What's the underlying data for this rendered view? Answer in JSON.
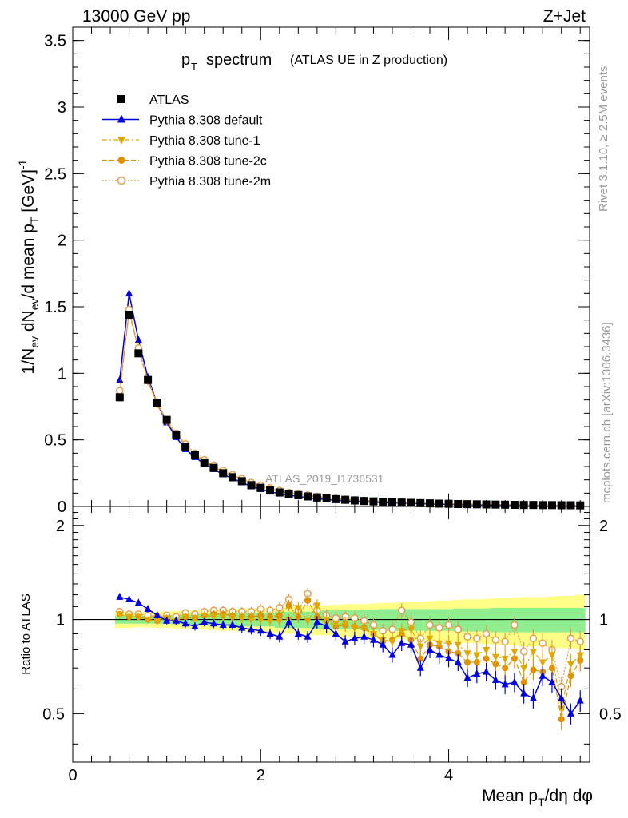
{
  "header": {
    "beam": "13000 GeV pp",
    "process": "Z+Jet"
  },
  "side_labels": {
    "rivet": "Rivet 3.1.10, ≥ 2.5M events",
    "mcplots": "mcplots.cern.ch [arXiv:1306.3436]"
  },
  "watermark": "ATLAS_2019_I1736531",
  "colors": {
    "atlas": "#000000",
    "default": "#0000dd",
    "tune1": "#e0a800",
    "tune2c": "#e09000",
    "tune2m": "#e0a050",
    "band_inner": "#90ee90",
    "band_outer": "#ffff88"
  },
  "chart_data": [
    {
      "type": "scatter",
      "title": "p_T spectrum (ATLAS UE in Z production)",
      "title_main": "p",
      "title_sub": "T",
      "title_rest": "spectrum",
      "title_small": "(ATLAS UE in Z production)",
      "ylabel": "1/N_ev dN_ev/d mean p_T [GeV]^-1",
      "ylim": [
        0,
        3.6
      ],
      "yticks": [
        0,
        0.5,
        1,
        1.5,
        2,
        2.5,
        3,
        3.5
      ],
      "ytick_labels": [
        "0",
        "0.5",
        "1",
        "1.5",
        "2",
        "2.5",
        "3",
        "3.5"
      ],
      "xlim": [
        0,
        5.5
      ],
      "legend_position": "top-left",
      "x": [
        0.5,
        0.6,
        0.7,
        0.8,
        0.9,
        1.0,
        1.1,
        1.2,
        1.3,
        1.4,
        1.5,
        1.6,
        1.7,
        1.8,
        1.9,
        2.0,
        2.1,
        2.2,
        2.3,
        2.4,
        2.5,
        2.6,
        2.7,
        2.8,
        2.9,
        3.0,
        3.1,
        3.2,
        3.3,
        3.4,
        3.5,
        3.6,
        3.7,
        3.8,
        3.9,
        4.0,
        4.1,
        4.2,
        4.3,
        4.4,
        4.5,
        4.6,
        4.7,
        4.8,
        4.9,
        5.0,
        5.1,
        5.2,
        5.3,
        5.4
      ],
      "series": [
        {
          "name": "ATLAS",
          "marker": "square",
          "values": [
            0.82,
            1.44,
            1.15,
            0.95,
            0.78,
            0.65,
            0.54,
            0.45,
            0.39,
            0.33,
            0.29,
            0.25,
            0.22,
            0.19,
            0.16,
            0.14,
            0.12,
            0.105,
            0.095,
            0.085,
            0.075,
            0.068,
            0.061,
            0.055,
            0.05,
            0.045,
            0.041,
            0.038,
            0.035,
            0.032,
            0.029,
            0.027,
            0.025,
            0.023,
            0.021,
            0.02,
            0.018,
            0.017,
            0.016,
            0.015,
            0.014,
            0.013,
            0.012,
            0.011,
            0.011,
            0.01,
            0.01,
            0.009,
            0.009,
            0.008
          ]
        },
        {
          "name": "Pythia 8.308 default",
          "marker": "triangle-up",
          "values": [
            0.95,
            1.6,
            1.25,
            0.97,
            0.77,
            0.63,
            0.52,
            0.43,
            0.37,
            0.32,
            0.28,
            0.24,
            0.21,
            0.18,
            0.15,
            0.13,
            0.11,
            0.095,
            0.085,
            0.075,
            0.066,
            0.058,
            0.052,
            0.047,
            0.042,
            0.038,
            0.035,
            0.032,
            0.029,
            0.027,
            0.025,
            0.023,
            0.021,
            0.019,
            0.017,
            0.016,
            0.014,
            0.013,
            0.012,
            0.011,
            0.01,
            0.009,
            0.009,
            0.008,
            0.007,
            0.007,
            0.006,
            0.006,
            0.005,
            0.005
          ]
        },
        {
          "name": "Pythia 8.308 tune-1",
          "marker": "triangle-down",
          "values": [
            0.86,
            1.46,
            1.18,
            0.94,
            0.77,
            0.64,
            0.54,
            0.46,
            0.39,
            0.34,
            0.3,
            0.26,
            0.23,
            0.2,
            0.17,
            0.15,
            0.13,
            0.115,
            0.1,
            0.09,
            0.08,
            0.072,
            0.064,
            0.058,
            0.052,
            0.047,
            0.043,
            0.039,
            0.036,
            0.033,
            0.03,
            0.028,
            0.026,
            0.024,
            0.022,
            0.02,
            0.018,
            0.017,
            0.016,
            0.015,
            0.014,
            0.013,
            0.012,
            0.011,
            0.01,
            0.01,
            0.009,
            0.009,
            0.008,
            0.008
          ]
        },
        {
          "name": "Pythia 8.308 tune-2c",
          "marker": "circle",
          "values": [
            0.86,
            1.47,
            1.18,
            0.94,
            0.77,
            0.64,
            0.54,
            0.46,
            0.39,
            0.34,
            0.3,
            0.26,
            0.23,
            0.2,
            0.17,
            0.15,
            0.13,
            0.115,
            0.1,
            0.09,
            0.08,
            0.072,
            0.064,
            0.058,
            0.052,
            0.047,
            0.043,
            0.039,
            0.036,
            0.033,
            0.03,
            0.028,
            0.026,
            0.024,
            0.022,
            0.02,
            0.018,
            0.017,
            0.016,
            0.015,
            0.014,
            0.013,
            0.012,
            0.011,
            0.01,
            0.01,
            0.009,
            0.009,
            0.008,
            0.008
          ]
        },
        {
          "name": "Pythia 8.308 tune-2m",
          "marker": "open-circle",
          "values": [
            0.87,
            1.48,
            1.19,
            0.95,
            0.78,
            0.65,
            0.55,
            0.47,
            0.4,
            0.35,
            0.31,
            0.27,
            0.24,
            0.21,
            0.18,
            0.16,
            0.14,
            0.12,
            0.105,
            0.095,
            0.085,
            0.076,
            0.068,
            0.061,
            0.055,
            0.05,
            0.045,
            0.041,
            0.038,
            0.035,
            0.032,
            0.029,
            0.027,
            0.025,
            0.023,
            0.021,
            0.019,
            0.018,
            0.017,
            0.016,
            0.015,
            0.014,
            0.013,
            0.012,
            0.011,
            0.011,
            0.01,
            0.01,
            0.009,
            0.009
          ]
        }
      ]
    },
    {
      "type": "scatter",
      "ylabel": "Ratio to ATLAS",
      "xlabel": "Mean p_T/dη dφ",
      "xlim": [
        0,
        5.5
      ],
      "xticks": [
        0,
        2,
        4
      ],
      "xtick_labels": [
        "0",
        "2",
        "4"
      ],
      "ylim": [
        0.35,
        2.3
      ],
      "yticks": [
        0.5,
        1,
        2
      ],
      "ytick_labels": [
        "0.5",
        "1",
        "2"
      ],
      "reference_line": 1,
      "band_inner": [
        0.03,
        0.03,
        0.03,
        0.03,
        0.03,
        0.03,
        0.035,
        0.035,
        0.04,
        0.04,
        0.045,
        0.045,
        0.05,
        0.05,
        0.05,
        0.05,
        0.05,
        0.06,
        0.06,
        0.06,
        0.06,
        0.065,
        0.07,
        0.07,
        0.07,
        0.07,
        0.075,
        0.075,
        0.08,
        0.08,
        0.08,
        0.08,
        0.08,
        0.08,
        0.08,
        0.08,
        0.085,
        0.085,
        0.085,
        0.085,
        0.09,
        0.09,
        0.09,
        0.09,
        0.09,
        0.09,
        0.09,
        0.09,
        0.09,
        0.09
      ],
      "band_outer": [
        0.06,
        0.06,
        0.055,
        0.055,
        0.06,
        0.06,
        0.065,
        0.065,
        0.07,
        0.07,
        0.075,
        0.08,
        0.08,
        0.085,
        0.085,
        0.09,
        0.09,
        0.095,
        0.1,
        0.1,
        0.105,
        0.11,
        0.11,
        0.115,
        0.12,
        0.12,
        0.12,
        0.125,
        0.13,
        0.13,
        0.135,
        0.14,
        0.14,
        0.145,
        0.15,
        0.15,
        0.155,
        0.16,
        0.16,
        0.165,
        0.17,
        0.17,
        0.175,
        0.18,
        0.18,
        0.18,
        0.185,
        0.19,
        0.19,
        0.2
      ],
      "series": [
        {
          "name": "Pythia 8.308 default",
          "marker": "triangle-up",
          "values": [
            1.18,
            1.16,
            1.13,
            1.08,
            1.03,
            0.99,
            0.99,
            0.97,
            0.95,
            0.98,
            0.97,
            0.96,
            0.96,
            0.94,
            0.93,
            0.92,
            0.9,
            0.88,
            0.98,
            0.9,
            0.88,
            0.98,
            0.95,
            0.9,
            0.85,
            0.87,
            0.88,
            0.86,
            0.83,
            0.77,
            0.84,
            0.83,
            0.7,
            0.8,
            0.77,
            0.75,
            0.73,
            0.65,
            0.67,
            0.68,
            0.64,
            0.62,
            0.63,
            0.58,
            0.56,
            0.66,
            0.63,
            0.56,
            0.5,
            0.55
          ]
        },
        {
          "name": "Pythia 8.308 tune-1",
          "marker": "triangle-down",
          "values": [
            1.04,
            1.02,
            1.02,
            1.0,
            0.99,
            1.01,
            0.99,
            1.02,
            1.01,
            1.03,
            1.02,
            1.02,
            1.01,
            1.01,
            1.0,
            1.0,
            0.99,
            0.99,
            1.0,
            1.09,
            0.99,
            1.11,
            1.0,
            0.97,
            0.97,
            0.94,
            0.93,
            0.9,
            0.86,
            0.85,
            0.92,
            0.93,
            0.82,
            0.87,
            0.84,
            0.84,
            0.83,
            0.78,
            0.77,
            0.8,
            0.76,
            0.75,
            0.79,
            0.7,
            0.79,
            0.73,
            0.77,
            0.52,
            0.72,
            0.77
          ]
        },
        {
          "name": "Pythia 8.308 tune-2c",
          "marker": "circle",
          "values": [
            1.04,
            1.02,
            1.02,
            1.0,
            0.99,
            1.01,
            0.99,
            1.02,
            1.01,
            1.03,
            1.04,
            1.04,
            1.03,
            1.02,
            1.02,
            1.03,
            1.02,
            1.03,
            1.11,
            1.02,
            1.15,
            1.02,
            0.99,
            0.95,
            0.96,
            0.95,
            0.94,
            0.9,
            0.85,
            0.86,
            0.9,
            0.86,
            0.75,
            0.83,
            0.82,
            0.79,
            0.78,
            0.73,
            0.73,
            0.75,
            0.72,
            0.7,
            0.75,
            0.63,
            0.69,
            0.68,
            0.7,
            0.48,
            0.66,
            0.74
          ]
        },
        {
          "name": "Pythia 8.308 tune-2m",
          "marker": "open-circle",
          "values": [
            1.06,
            1.04,
            1.04,
            1.03,
            1.02,
            1.03,
            1.02,
            1.05,
            1.04,
            1.06,
            1.07,
            1.07,
            1.06,
            1.06,
            1.06,
            1.08,
            1.07,
            1.09,
            1.16,
            1.07,
            1.21,
            1.07,
            1.03,
            1.01,
            1.02,
            1.01,
            0.99,
            0.96,
            0.92,
            0.93,
            1.07,
            0.98,
            0.87,
            0.96,
            0.94,
            0.96,
            0.93,
            0.88,
            0.87,
            0.9,
            0.86,
            0.85,
            0.96,
            0.79,
            0.87,
            0.84,
            0.8,
            0.61,
            0.87,
            0.85
          ]
        }
      ]
    }
  ]
}
